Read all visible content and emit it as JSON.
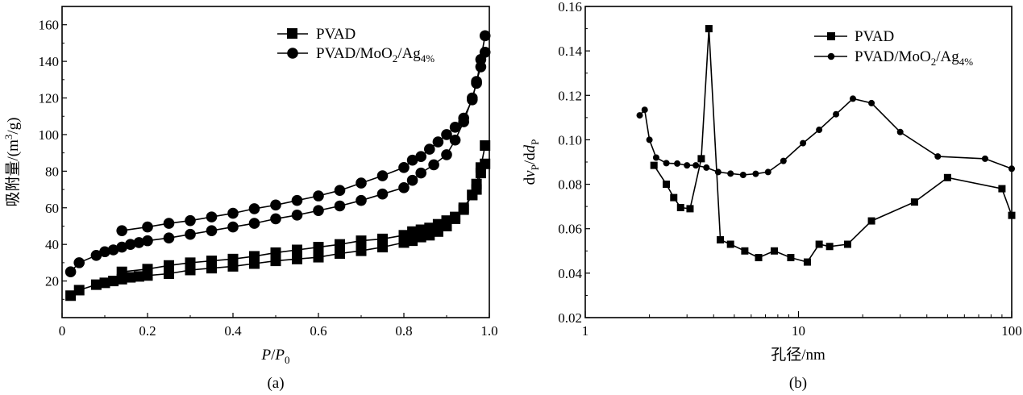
{
  "chart_data": [
    {
      "id": "a",
      "type": "line",
      "panel_label": "(a)",
      "title": "",
      "xlabel": {
        "main": "P",
        "sep": "/",
        "main2": "P",
        "sub2": "0"
      },
      "ylabel": {
        "pre": "吸附量/(m",
        "sup": "3",
        "post": "/g)"
      },
      "xlim": [
        0,
        1.0
      ],
      "ylim": [
        0,
        170
      ],
      "xticks": [
        0,
        0.2,
        0.4,
        0.6,
        0.8,
        1.0
      ],
      "xtick_labels": [
        "0",
        "0.2",
        "0.4",
        "0.6",
        "0.8",
        "1.0"
      ],
      "yticks": [
        20,
        40,
        60,
        80,
        100,
        120,
        140,
        160
      ],
      "ytick_labels": [
        "20",
        "40",
        "60",
        "80",
        "100",
        "120",
        "140",
        "160"
      ],
      "legend_position": "top-right",
      "series": [
        {
          "name": "PVAD",
          "legend": {
            "text": "PVAD"
          },
          "marker": "square",
          "adsorption": [
            [
              0.02,
              12
            ],
            [
              0.04,
              15
            ],
            [
              0.08,
              18
            ],
            [
              0.1,
              19
            ],
            [
              0.12,
              20
            ],
            [
              0.14,
              21
            ],
            [
              0.16,
              22
            ],
            [
              0.18,
              22.5
            ],
            [
              0.2,
              23
            ],
            [
              0.25,
              24
            ],
            [
              0.3,
              26
            ],
            [
              0.35,
              27
            ],
            [
              0.4,
              28
            ],
            [
              0.45,
              29.5
            ],
            [
              0.5,
              31
            ],
            [
              0.55,
              32
            ],
            [
              0.6,
              33
            ],
            [
              0.65,
              35
            ],
            [
              0.7,
              36.5
            ],
            [
              0.75,
              38.5
            ],
            [
              0.8,
              41
            ],
            [
              0.82,
              42
            ],
            [
              0.84,
              44
            ],
            [
              0.86,
              45
            ],
            [
              0.88,
              47
            ],
            [
              0.9,
              50
            ],
            [
              0.92,
              54
            ],
            [
              0.94,
              60
            ],
            [
              0.96,
              67
            ],
            [
              0.97,
              73
            ],
            [
              0.98,
              82
            ],
            [
              0.99,
              94
            ]
          ],
          "desorption": [
            [
              0.99,
              84
            ],
            [
              0.98,
              79
            ],
            [
              0.97,
              70
            ],
            [
              0.96,
              67
            ],
            [
              0.94,
              59
            ],
            [
              0.92,
              55
            ],
            [
              0.9,
              53
            ],
            [
              0.88,
              51
            ],
            [
              0.86,
              49
            ],
            [
              0.84,
              48
            ],
            [
              0.82,
              47
            ],
            [
              0.8,
              45
            ],
            [
              0.75,
              43
            ],
            [
              0.7,
              42
            ],
            [
              0.65,
              40
            ],
            [
              0.6,
              38.5
            ],
            [
              0.55,
              37
            ],
            [
              0.5,
              35.5
            ],
            [
              0.45,
              33.5
            ],
            [
              0.4,
              32
            ],
            [
              0.35,
              31
            ],
            [
              0.3,
              30
            ],
            [
              0.25,
              28.5
            ],
            [
              0.2,
              26.5
            ],
            [
              0.14,
              25
            ]
          ]
        },
        {
          "name": "PVAD/MoO2/Ag4%",
          "legend": {
            "pre": "PVAD/MoO",
            "sub1": "2",
            "mid": "/Ag",
            "sub2": "4%"
          },
          "marker": "circle",
          "adsorption": [
            [
              0.02,
              25
            ],
            [
              0.04,
              30
            ],
            [
              0.08,
              34
            ],
            [
              0.1,
              36
            ],
            [
              0.12,
              37
            ],
            [
              0.14,
              38.5
            ],
            [
              0.16,
              40
            ],
            [
              0.18,
              41
            ],
            [
              0.2,
              42
            ],
            [
              0.25,
              43.5
            ],
            [
              0.3,
              45.5
            ],
            [
              0.35,
              47.5
            ],
            [
              0.4,
              49.5
            ],
            [
              0.45,
              51.5
            ],
            [
              0.5,
              54
            ],
            [
              0.55,
              56
            ],
            [
              0.6,
              58.5
            ],
            [
              0.65,
              61
            ],
            [
              0.7,
              64
            ],
            [
              0.75,
              67.5
            ],
            [
              0.8,
              71
            ],
            [
              0.82,
              75
            ],
            [
              0.84,
              79
            ],
            [
              0.87,
              83.5
            ],
            [
              0.9,
              89
            ],
            [
              0.92,
              97
            ],
            [
              0.94,
              107
            ],
            [
              0.96,
              120
            ],
            [
              0.97,
              128
            ],
            [
              0.98,
              141
            ],
            [
              0.99,
              154
            ]
          ],
          "desorption": [
            [
              0.99,
              145
            ],
            [
              0.98,
              137
            ],
            [
              0.97,
              129
            ],
            [
              0.96,
              119
            ],
            [
              0.94,
              109
            ],
            [
              0.92,
              104
            ],
            [
              0.9,
              100
            ],
            [
              0.88,
              96
            ],
            [
              0.86,
              92
            ],
            [
              0.84,
              88
            ],
            [
              0.82,
              86
            ],
            [
              0.8,
              82
            ],
            [
              0.75,
              77.5
            ],
            [
              0.7,
              73.5
            ],
            [
              0.65,
              69.5
            ],
            [
              0.6,
              66.5
            ],
            [
              0.55,
              64
            ],
            [
              0.5,
              61.5
            ],
            [
              0.45,
              59.5
            ],
            [
              0.4,
              57
            ],
            [
              0.35,
              55
            ],
            [
              0.3,
              53
            ],
            [
              0.25,
              51.5
            ],
            [
              0.2,
              49.5
            ],
            [
              0.14,
              47.5
            ]
          ]
        }
      ]
    },
    {
      "id": "b",
      "type": "line",
      "panel_label": "(b)",
      "title": "",
      "xscale": "log",
      "xlabel": {
        "main": "孔径/nm"
      },
      "ylabel": {
        "t1": "d",
        "t2": "v",
        "sub1": "P",
        "t3": "/d",
        "t4": "d",
        "sub2": "P"
      },
      "xlim": [
        1,
        100
      ],
      "ylim": [
        0.02,
        0.16
      ],
      "xticks": [
        1,
        10,
        100
      ],
      "xtick_labels": [
        "1",
        "10",
        "100"
      ],
      "yticks": [
        0.02,
        0.04,
        0.06,
        0.08,
        0.1,
        0.12,
        0.14,
        0.16
      ],
      "ytick_labels": [
        "0.02",
        "0.04",
        "0.06",
        "0.08",
        "0.10",
        "0.12",
        "0.14",
        "0.16"
      ],
      "legend_position": "top-right",
      "series": [
        {
          "name": "PVAD",
          "legend": {
            "text": "PVAD"
          },
          "marker": "square",
          "points": [
            [
              2.1,
              0.0885
            ],
            [
              2.4,
              0.08
            ],
            [
              2.6,
              0.074
            ],
            [
              2.8,
              0.0695
            ],
            [
              3.1,
              0.069
            ],
            [
              3.5,
              0.0915
            ],
            [
              3.8,
              0.15
            ],
            [
              4.3,
              0.055
            ],
            [
              4.8,
              0.053
            ],
            [
              5.6,
              0.05
            ],
            [
              6.5,
              0.047
            ],
            [
              7.7,
              0.05
            ],
            [
              9.2,
              0.047
            ],
            [
              11,
              0.045
            ],
            [
              12.5,
              0.053
            ],
            [
              14,
              0.052
            ],
            [
              17,
              0.053
            ],
            [
              22,
              0.0635
            ],
            [
              35,
              0.072
            ],
            [
              50,
              0.083
            ],
            [
              90,
              0.078
            ],
            [
              100,
              0.066
            ]
          ]
        },
        {
          "name": "PVAD/MoO2/Ag4%",
          "legend": {
            "pre": "PVAD/MoO",
            "sub1": "2",
            "mid": "/Ag",
            "sub2": "4%"
          },
          "marker": "dot",
          "points": [
            [
              1.8,
              0.111
            ],
            [
              1.9,
              0.1135
            ],
            [
              2.0,
              0.1
            ],
            [
              2.15,
              0.092
            ],
            [
              2.4,
              0.0895
            ],
            [
              2.7,
              0.0893
            ],
            [
              3.0,
              0.0885
            ],
            [
              3.3,
              0.0885
            ],
            [
              3.7,
              0.0875
            ],
            [
              4.2,
              0.0855
            ],
            [
              4.8,
              0.0848
            ],
            [
              5.5,
              0.0842
            ],
            [
              6.3,
              0.0847
            ],
            [
              7.2,
              0.0855
            ],
            [
              8.5,
              0.0905
            ],
            [
              10.5,
              0.0985
            ],
            [
              12.5,
              0.1045
            ],
            [
              15,
              0.1115
            ],
            [
              18,
              0.1185
            ],
            [
              22,
              0.1165
            ],
            [
              30,
              0.1035
            ],
            [
              45,
              0.0925
            ],
            [
              75,
              0.0915
            ],
            [
              100,
              0.087
            ]
          ]
        }
      ]
    }
  ]
}
